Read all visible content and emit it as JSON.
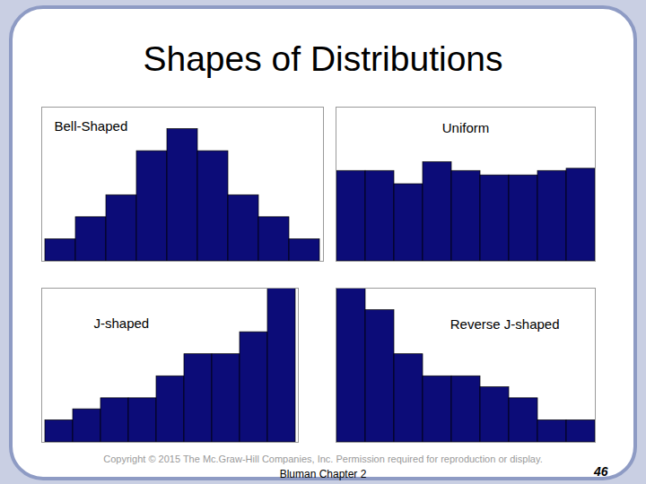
{
  "slide": {
    "title": "Shapes of Distributions",
    "footer": "Copyright © 2015 The Mc.Graw-Hill Companies, Inc.  Permission required for reproduction or display.",
    "source": "Bluman Chapter 2",
    "page": 46
  },
  "chart_data": [
    {
      "type": "bar",
      "title": "Bell-Shaped",
      "categories": [
        null,
        null,
        null,
        null,
        null,
        null,
        null,
        null,
        null
      ],
      "values": [
        1,
        2,
        3,
        5,
        6,
        5,
        3,
        2,
        1
      ],
      "color": "#0c0c78",
      "ylim": [
        0,
        7
      ],
      "tick_labels": false
    },
    {
      "type": "bar",
      "title": "Uniform",
      "categories": [
        null,
        null,
        null,
        null,
        null,
        null,
        null,
        null,
        null
      ],
      "values": [
        4.1,
        4.1,
        3.5,
        4.5,
        4.1,
        3.9,
        3.9,
        4.1,
        4.2
      ],
      "color": "#0c0c78",
      "ylim": [
        0,
        7
      ],
      "tick_labels": false
    },
    {
      "type": "bar",
      "title": "J-shaped",
      "categories": [
        null,
        null,
        null,
        null,
        null,
        null,
        null,
        null,
        null
      ],
      "values": [
        1,
        1.5,
        2,
        2,
        3,
        4,
        4,
        5,
        7
      ],
      "color": "#0c0c78",
      "ylim": [
        0,
        7
      ],
      "tick_labels": false
    },
    {
      "type": "bar",
      "title": "Reverse J-shaped",
      "categories": [
        null,
        null,
        null,
        null,
        null,
        null,
        null,
        null,
        null
      ],
      "values": [
        7,
        6,
        4,
        3,
        3,
        2.5,
        2,
        1,
        1
      ],
      "color": "#0c0c78",
      "ylim": [
        0,
        7
      ],
      "tick_labels": false
    }
  ]
}
